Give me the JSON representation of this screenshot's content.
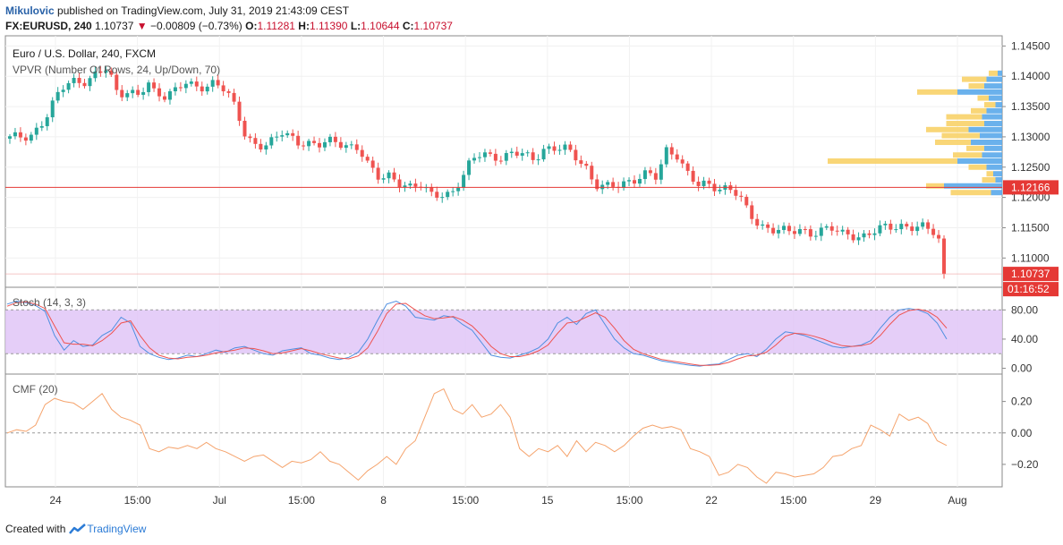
{
  "header": {
    "user": "Mikulovic",
    "published": "published on TradingView.com, July 31, 2019 21:43:09 CEST",
    "symbol": "FX:EURUSD, 240",
    "last": "1.10737",
    "change": "−0.00809 (−0.73%)",
    "o_label": "O:",
    "o_value": "1.11281",
    "h_label": "H:",
    "h_value": "1.11390",
    "l_label": "L:",
    "l_value": "1.10644",
    "c_label": "C:",
    "c_value": "1.10737"
  },
  "panes": {
    "main_title": "Euro / U.S. Dollar, 240, FXCM",
    "vpvr_label": "VPVR (Number Of Rows, 24, Up/Down, 70)",
    "stoch_label": "Stoch (14, 3, 3)",
    "cmf_label": "CMF (20)"
  },
  "price_tags": {
    "hline": "1.12166",
    "last": "1.10737",
    "countdown": "01:16:52"
  },
  "footer": {
    "created_with": "Created with",
    "brand": "TradingView"
  },
  "colors": {
    "up": "#26a69a",
    "down": "#ef5350",
    "hline": "#e53935",
    "stoch_k": "#4f8fe0",
    "stoch_d": "#ef5350",
    "stoch_band": "#e1c6f7",
    "cmf": "#f5a36c",
    "vp_up": "#5aa9ea",
    "vp_down": "#f8d268"
  },
  "chart_data": [
    {
      "type": "candlestick",
      "title": "Euro / U.S. Dollar, 240, FXCM",
      "x_ticks": [
        "24",
        "15:00",
        "Jul",
        "15:00",
        "8",
        "15:00",
        "15",
        "15:00",
        "22",
        "15:00",
        "29",
        "Aug"
      ],
      "y_ticks": [
        "1.14500",
        "1.14000",
        "1.13500",
        "1.13000",
        "1.12500",
        "1.12000",
        "1.11500",
        "1.11000"
      ],
      "ylim": [
        1.1065,
        1.1455
      ],
      "hline": 1.12166,
      "last": 1.10737,
      "close_path": [
        [
          0,
          1.1297
        ],
        [
          4,
          1.1303
        ],
        [
          7,
          1.133
        ],
        [
          10,
          1.1378
        ],
        [
          12,
          1.1395
        ],
        [
          15,
          1.1392
        ],
        [
          17,
          1.1402
        ],
        [
          19,
          1.1412
        ],
        [
          21,
          1.1372
        ],
        [
          23,
          1.1378
        ],
        [
          25,
          1.1368
        ],
        [
          27,
          1.1385
        ],
        [
          28,
          1.1372
        ],
        [
          30,
          1.1368
        ],
        [
          32,
          1.138
        ],
        [
          34,
          1.139
        ],
        [
          36,
          1.1378
        ],
        [
          38,
          1.138
        ],
        [
          40,
          1.1395
        ],
        [
          42,
          1.138
        ],
        [
          44,
          1.1345
        ],
        [
          46,
          1.1295
        ],
        [
          48,
          1.1288
        ],
        [
          50,
          1.129
        ],
        [
          53,
          1.1305
        ],
        [
          56,
          1.129
        ],
        [
          58,
          1.1293
        ],
        [
          60,
          1.1288
        ],
        [
          62,
          1.1291
        ],
        [
          64,
          1.1287
        ],
        [
          66,
          1.1286
        ],
        [
          68,
          1.1285
        ],
        [
          70,
          1.125
        ],
        [
          72,
          1.1228
        ],
        [
          74,
          1.1236
        ],
        [
          76,
          1.1226
        ],
        [
          78,
          1.1218
        ],
        [
          80,
          1.1218
        ],
        [
          82,
          1.1203
        ],
        [
          84,
          1.1207
        ],
        [
          86,
          1.1208
        ],
        [
          88,
          1.1228
        ],
        [
          90,
          1.126
        ],
        [
          92,
          1.1275
        ],
        [
          94,
          1.127
        ],
        [
          96,
          1.1265
        ],
        [
          98,
          1.127
        ],
        [
          100,
          1.1272
        ],
        [
          102,
          1.1265
        ],
        [
          104,
          1.1281
        ],
        [
          106,
          1.1278
        ],
        [
          108,
          1.128
        ],
        [
          110,
          1.127
        ],
        [
          112,
          1.1256
        ],
        [
          114,
          1.122
        ],
        [
          116,
          1.1215
        ],
        [
          118,
          1.1218
        ],
        [
          120,
          1.1227
        ],
        [
          122,
          1.1232
        ],
        [
          124,
          1.1238
        ],
        [
          126,
          1.1231
        ],
        [
          128,
          1.128
        ],
        [
          130,
          1.1272
        ],
        [
          132,
          1.124
        ],
        [
          134,
          1.1218
        ],
        [
          136,
          1.122
        ],
        [
          138,
          1.1217
        ],
        [
          140,
          1.1218
        ],
        [
          142,
          1.1203
        ],
        [
          144,
          1.117
        ],
        [
          146,
          1.1155
        ],
        [
          148,
          1.115
        ],
        [
          150,
          1.1148
        ],
        [
          152,
          1.114
        ],
        [
          154,
          1.1145
        ],
        [
          156,
          1.1142
        ],
        [
          158,
          1.1148
        ],
        [
          160,
          1.1148
        ],
        [
          162,
          1.1138
        ],
        [
          164,
          1.1138
        ],
        [
          166,
          1.1137
        ],
        [
          168,
          1.1143
        ],
        [
          170,
          1.1148
        ],
        [
          172,
          1.115
        ],
        [
          174,
          1.1155
        ],
        [
          176,
          1.1153
        ],
        [
          178,
          1.115
        ],
        [
          180,
          1.114
        ],
        [
          181,
          1.1128
        ],
        [
          182,
          1.10737
        ]
      ],
      "vpvr_rows": [
        {
          "price": 1.1405,
          "up": 0.2,
          "down": 0.1
        },
        {
          "price": 1.1395,
          "up": 0.55,
          "down": 0.35
        },
        {
          "price": 1.1384,
          "up": 0.35,
          "down": 0.4
        },
        {
          "price": 1.1374,
          "up": 0.9,
          "down": 1.0
        },
        {
          "price": 1.1364,
          "up": 0.25,
          "down": 0.3
        },
        {
          "price": 1.1353,
          "up": 0.25,
          "down": 0.15
        },
        {
          "price": 1.1343,
          "up": 0.35,
          "down": 0.35
        },
        {
          "price": 1.1333,
          "up": 0.8,
          "down": 0.45
        },
        {
          "price": 1.1322,
          "up": 0.85,
          "down": 0.4
        },
        {
          "price": 1.1312,
          "up": 0.95,
          "down": 0.75
        },
        {
          "price": 1.1302,
          "up": 0.85,
          "down": 0.5
        },
        {
          "price": 1.1291,
          "up": 0.8,
          "down": 0.7
        },
        {
          "price": 1.1281,
          "up": 0.4,
          "down": 0.4
        },
        {
          "price": 1.127,
          "up": 0.65,
          "down": 0.45
        },
        {
          "price": 1.126,
          "up": 2.9,
          "down": 1.0
        },
        {
          "price": 1.125,
          "up": 0.4,
          "down": 0.35
        },
        {
          "price": 1.1239,
          "up": 0.15,
          "down": 0.2
        },
        {
          "price": 1.1229,
          "up": 0.3,
          "down": 0.15
        },
        {
          "price": 1.1219,
          "up": 0.4,
          "down": 1.3
        },
        {
          "price": 1.1208,
          "up": 0.9,
          "down": 0.25
        }
      ]
    },
    {
      "type": "line",
      "title": "Stoch (14, 3, 3)",
      "y_ticks": [
        "80.00",
        "40.00",
        "0.00"
      ],
      "ylim": [
        -3,
        100
      ],
      "band": [
        20,
        80
      ],
      "series": [
        {
          "values": [
            88,
            92,
            90,
            86,
            78,
            45,
            25,
            38,
            30,
            32,
            45,
            52,
            70,
            62,
            30,
            20,
            15,
            12,
            14,
            18,
            16,
            20,
            25,
            22,
            28,
            30,
            25,
            20,
            18,
            24,
            26,
            28,
            20,
            18,
            14,
            12,
            15,
            22,
            40,
            65,
            88,
            92,
            85,
            70,
            68,
            66,
            72,
            70,
            60,
            52,
            35,
            18,
            15,
            14,
            18,
            22,
            28,
            40,
            62,
            70,
            60,
            75,
            80,
            60,
            40,
            28,
            20,
            18,
            14,
            10,
            8,
            6,
            4,
            3,
            5,
            6,
            12,
            18,
            20,
            16,
            26,
            40,
            50,
            48,
            45,
            40,
            35,
            30,
            28,
            30,
            32,
            38,
            55,
            70,
            80,
            82,
            80,
            75,
            62,
            40
          ]
        },
        {
          "values": [
            85,
            90,
            91,
            88,
            82,
            58,
            35,
            33,
            33,
            31,
            38,
            48,
            62,
            65,
            45,
            28,
            18,
            14,
            13,
            15,
            16,
            18,
            21,
            23,
            25,
            28,
            27,
            24,
            20,
            21,
            24,
            27,
            24,
            20,
            17,
            14,
            13,
            17,
            28,
            50,
            75,
            88,
            89,
            80,
            72,
            68,
            69,
            71,
            66,
            58,
            45,
            30,
            20,
            16,
            16,
            19,
            24,
            32,
            48,
            62,
            64,
            70,
            76,
            70,
            55,
            38,
            26,
            20,
            16,
            12,
            10,
            8,
            6,
            4,
            4,
            5,
            8,
            13,
            17,
            18,
            22,
            32,
            44,
            48,
            47,
            44,
            40,
            35,
            31,
            30,
            31,
            34,
            45,
            60,
            73,
            79,
            81,
            78,
            70,
            55
          ]
        }
      ]
    },
    {
      "type": "line",
      "title": "CMF (20)",
      "y_ticks": [
        "0.20",
        "0.00",
        "−0.20"
      ],
      "ylim": [
        -0.32,
        0.34
      ],
      "series": [
        {
          "values": [
            0.0,
            0.02,
            0.01,
            0.05,
            0.18,
            0.22,
            0.2,
            0.19,
            0.15,
            0.2,
            0.25,
            0.15,
            0.1,
            0.08,
            0.05,
            -0.1,
            -0.12,
            -0.09,
            -0.1,
            -0.08,
            -0.1,
            -0.06,
            -0.1,
            -0.12,
            -0.15,
            -0.18,
            -0.15,
            -0.14,
            -0.18,
            -0.22,
            -0.18,
            -0.19,
            -0.17,
            -0.12,
            -0.18,
            -0.2,
            -0.25,
            -0.3,
            -0.24,
            -0.2,
            -0.15,
            -0.2,
            -0.1,
            -0.05,
            0.1,
            0.25,
            0.28,
            0.15,
            0.12,
            0.18,
            0.1,
            0.12,
            0.18,
            0.1,
            -0.1,
            -0.15,
            -0.1,
            -0.12,
            -0.08,
            -0.15,
            -0.05,
            -0.12,
            -0.06,
            -0.08,
            -0.12,
            -0.08,
            -0.02,
            0.03,
            0.05,
            0.03,
            0.04,
            0.02,
            -0.1,
            -0.12,
            -0.15,
            -0.27,
            -0.25,
            -0.2,
            -0.22,
            -0.28,
            -0.32,
            -0.25,
            -0.26,
            -0.28,
            -0.27,
            -0.26,
            -0.22,
            -0.15,
            -0.14,
            -0.1,
            -0.08,
            0.05,
            0.02,
            -0.02,
            0.12,
            0.08,
            0.1,
            0.06,
            -0.05,
            -0.08
          ]
        }
      ]
    }
  ]
}
